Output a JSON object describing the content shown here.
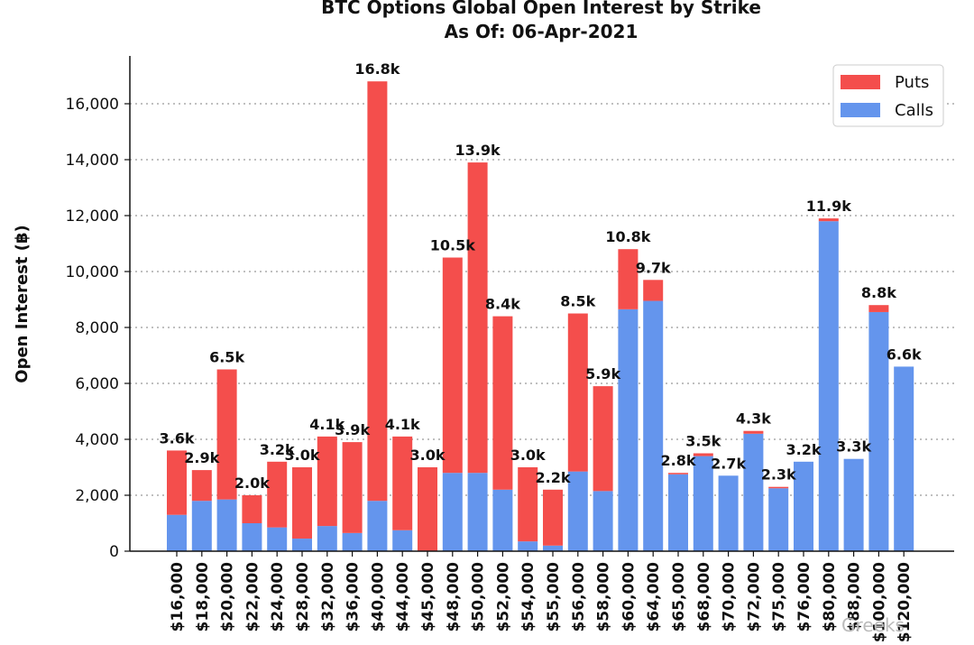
{
  "chart_data": {
    "type": "bar",
    "stacked": true,
    "title": "BTC Options Global Open Interest by Strike",
    "subtitle": "As Of: 06-Apr-2021",
    "xlabel": "",
    "ylabel": "Open Interest (฿)",
    "ylim": [
      0,
      17500
    ],
    "yticks": [
      0,
      2000,
      4000,
      6000,
      8000,
      10000,
      12000,
      14000,
      16000
    ],
    "ytick_labels": [
      "0",
      "2,000",
      "4,000",
      "6,000",
      "8,000",
      "10,000",
      "12,000",
      "14,000",
      "16,000"
    ],
    "grid": "horizontal dotted",
    "legend_position": "top-right",
    "categories": [
      "$16,000",
      "$18,000",
      "$20,000",
      "$22,000",
      "$24,000",
      "$28,000",
      "$32,000",
      "$36,000",
      "$40,000",
      "$44,000",
      "$45,000",
      "$48,000",
      "$50,000",
      "$52,000",
      "$54,000",
      "$55,000",
      "$56,000",
      "$58,000",
      "$60,000",
      "$64,000",
      "$65,000",
      "$68,000",
      "$70,000",
      "$72,000",
      "$75,000",
      "$76,000",
      "$80,000",
      "$88,000",
      "$100,000",
      "$120,000"
    ],
    "series": [
      {
        "name": "Calls",
        "color": "#6495ED",
        "values": [
          1300,
          1800,
          1850,
          1000,
          850,
          450,
          900,
          650,
          1800,
          750,
          0,
          2800,
          2800,
          2200,
          350,
          200,
          2850,
          2150,
          8650,
          8950,
          2750,
          3400,
          2700,
          4200,
          2250,
          3200,
          11800,
          3300,
          8550,
          6600
        ]
      },
      {
        "name": "Puts",
        "color": "#F44E4C",
        "values": [
          2300,
          1100,
          4650,
          1000,
          2350,
          2550,
          3200,
          3250,
          15000,
          3350,
          3000,
          7700,
          11100,
          6200,
          2650,
          2000,
          5650,
          3750,
          2150,
          750,
          50,
          100,
          0,
          100,
          50,
          0,
          100,
          0,
          250,
          0
        ]
      }
    ],
    "data_labels": [
      "3.6k",
      "2.9k",
      "6.5k",
      "2.0k",
      "3.2k",
      "3.0k",
      "4.1k",
      "3.9k",
      "16.8k",
      "4.1k",
      "3.0k",
      "10.5k",
      "13.9k",
      "8.4k",
      "3.0k",
      "2.2k",
      "8.5k",
      "5.9k",
      "10.8k",
      "9.7k",
      "2.8k",
      "3.5k",
      "2.7k",
      "4.3k",
      "2.3k",
      "3.2k",
      "11.9k",
      "3.3k",
      "8.8k",
      "6.6k"
    ]
  },
  "watermark": "Greeks"
}
